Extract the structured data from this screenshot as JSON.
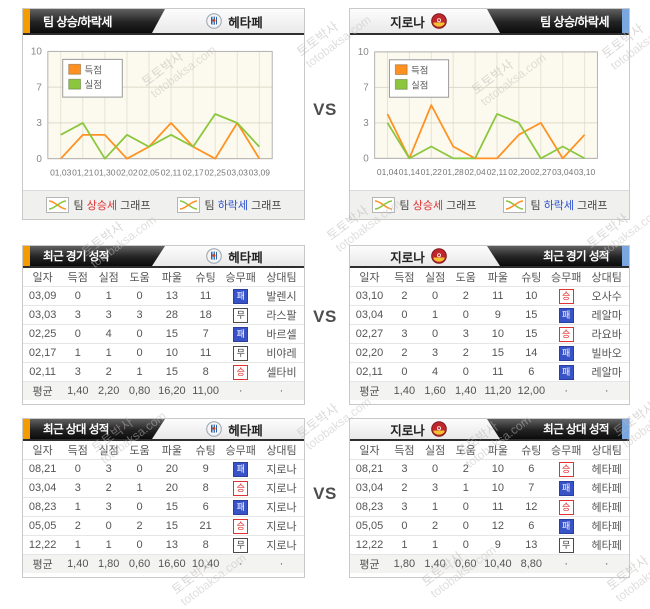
{
  "vs_label": "VS",
  "watermark": {
    "line1": "토토박사",
    "line2": "totobaksa.com"
  },
  "teams": {
    "left": {
      "name": "헤타페"
    },
    "right": {
      "name": "지로나"
    }
  },
  "trend": {
    "title": "팀 상승/하락세",
    "legend_items": [
      {
        "pre": "팀 ",
        "word": "상승세",
        "post": " 그래프",
        "color": "#e03030"
      },
      {
        "pre": "팀 ",
        "word": "하락세",
        "post": " 그래프",
        "color": "#2b50cc"
      }
    ]
  },
  "colors": {
    "accent_orange": "#f49b00",
    "accent_blue": "#7aa7e0",
    "score_orange": "#ff9122",
    "concede_green": "#8cc63e",
    "win_red": "#e03232",
    "loss_blue": "#3853c8"
  },
  "chart_data": [
    {
      "type": "line",
      "team": "헤타페",
      "x": [
        "01,03",
        "01,21",
        "01,30",
        "02,02",
        "02,05",
        "02,11",
        "02,17",
        "02,25",
        "03,03",
        "03,09"
      ],
      "series": [
        {
          "name": "득점",
          "color": "#ff9122",
          "values": [
            0,
            2,
            2,
            0,
            1,
            3,
            1,
            0,
            3,
            0
          ]
        },
        {
          "name": "실점",
          "color": "#8cc63e",
          "values": [
            2,
            3,
            0,
            2,
            1,
            2,
            1,
            4,
            3,
            1
          ]
        }
      ],
      "yticks": [
        0,
        3,
        7,
        10
      ],
      "ylim": [
        0,
        10
      ],
      "legend_position": "top-left",
      "grid": true,
      "plot_bg": "#fcfaee"
    },
    {
      "type": "line",
      "team": "지로나",
      "x": [
        "01,04",
        "01,14",
        "01,22",
        "01,28",
        "02,04",
        "02,11",
        "02,20",
        "02,27",
        "03,04",
        "03,10"
      ],
      "series": [
        {
          "name": "득점",
          "color": "#ff9122",
          "values": [
            4,
            0,
            5,
            1,
            0,
            0,
            2,
            3,
            0,
            2
          ]
        },
        {
          "name": "실점",
          "color": "#8cc63e",
          "values": [
            3,
            0,
            1,
            0,
            0,
            4,
            3,
            0,
            1,
            0
          ]
        }
      ],
      "yticks": [
        0,
        3,
        7,
        10
      ],
      "ylim": [
        0,
        10
      ],
      "legend_position": "top-left",
      "grid": true,
      "plot_bg": "#fcfaee"
    }
  ],
  "table_columns": [
    "일자",
    "득점",
    "실점",
    "도움",
    "파울",
    "슈팅",
    "승무패",
    "상대팀"
  ],
  "recent": {
    "title": "최근 경기 성적",
    "left": {
      "rows": [
        [
          "03,09",
          "0",
          "1",
          "0",
          "13",
          "11",
          "패",
          "발렌시"
        ],
        [
          "03,03",
          "3",
          "3",
          "3",
          "28",
          "18",
          "무",
          "라스팔"
        ],
        [
          "02,25",
          "0",
          "4",
          "0",
          "15",
          "7",
          "패",
          "바르셀"
        ],
        [
          "02,17",
          "1",
          "1",
          "0",
          "10",
          "11",
          "무",
          "비야레"
        ],
        [
          "02,11",
          "3",
          "2",
          "1",
          "15",
          "8",
          "승",
          "셀타비"
        ]
      ],
      "avg": [
        "평균",
        "1,40",
        "2,20",
        "0,80",
        "16,20",
        "11,00",
        "·",
        "·"
      ]
    },
    "right": {
      "rows": [
        [
          "03,10",
          "2",
          "0",
          "2",
          "11",
          "10",
          "승",
          "오사수"
        ],
        [
          "03,04",
          "0",
          "1",
          "0",
          "9",
          "15",
          "패",
          "레알마"
        ],
        [
          "02,27",
          "3",
          "0",
          "3",
          "10",
          "15",
          "승",
          "라요바"
        ],
        [
          "02,20",
          "2",
          "3",
          "2",
          "15",
          "14",
          "패",
          "빌바오"
        ],
        [
          "02,11",
          "0",
          "4",
          "0",
          "11",
          "6",
          "패",
          "레알마"
        ]
      ],
      "avg": [
        "평균",
        "1,40",
        "1,60",
        "1,40",
        "11,20",
        "12,00",
        "·",
        "·"
      ]
    }
  },
  "h2h": {
    "title": "최근 상대 성적",
    "left": {
      "rows": [
        [
          "08,21",
          "0",
          "3",
          "0",
          "20",
          "9",
          "패",
          "지로나"
        ],
        [
          "03,04",
          "3",
          "2",
          "1",
          "20",
          "8",
          "승",
          "지로나"
        ],
        [
          "08,23",
          "1",
          "3",
          "0",
          "15",
          "6",
          "패",
          "지로나"
        ],
        [
          "05,05",
          "2",
          "0",
          "2",
          "15",
          "21",
          "승",
          "지로나"
        ],
        [
          "12,22",
          "1",
          "1",
          "0",
          "13",
          "8",
          "무",
          "지로나"
        ]
      ],
      "avg": [
        "평균",
        "1,40",
        "1,80",
        "0,60",
        "16,60",
        "10,40",
        "·",
        "·"
      ]
    },
    "right": {
      "rows": [
        [
          "08,21",
          "3",
          "0",
          "2",
          "10",
          "6",
          "승",
          "헤타페"
        ],
        [
          "03,04",
          "2",
          "3",
          "1",
          "10",
          "7",
          "패",
          "헤타페"
        ],
        [
          "08,23",
          "3",
          "1",
          "0",
          "11",
          "12",
          "승",
          "헤타페"
        ],
        [
          "05,05",
          "0",
          "2",
          "0",
          "12",
          "6",
          "패",
          "헤타페"
        ],
        [
          "12,22",
          "1",
          "1",
          "0",
          "9",
          "13",
          "무",
          "헤타페"
        ]
      ],
      "avg": [
        "평균",
        "1,80",
        "1,40",
        "0,60",
        "10,40",
        "8,80",
        "·",
        "·"
      ]
    }
  }
}
